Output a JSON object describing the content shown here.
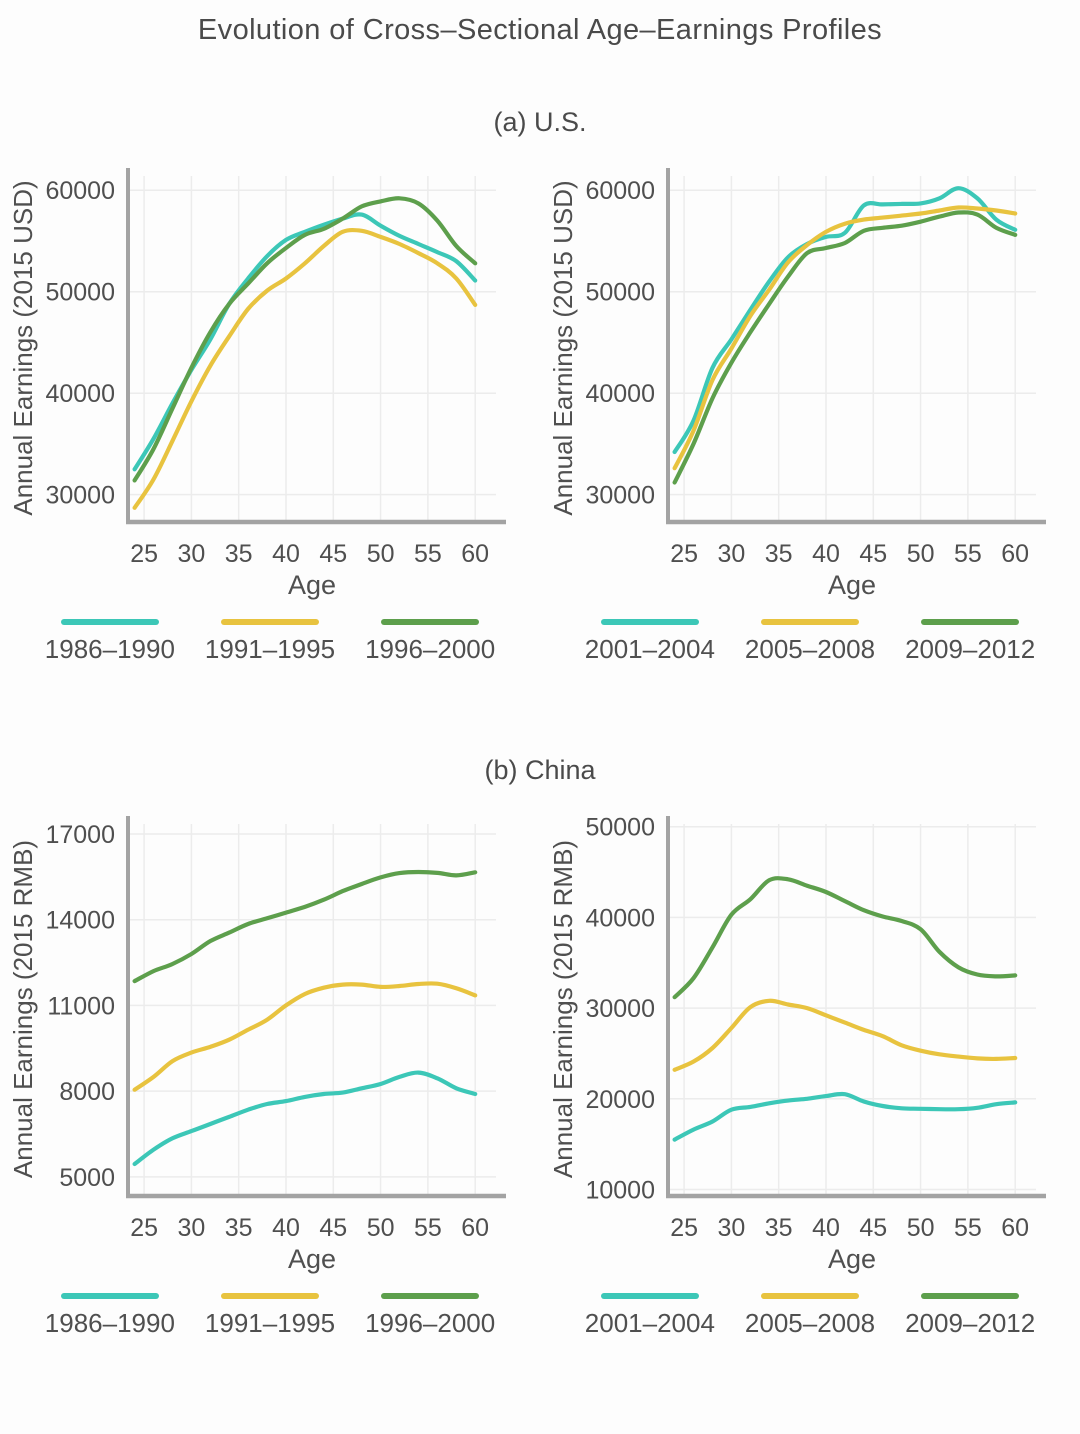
{
  "figure": {
    "title": "Evolution of Cross–Sectional Age–Earnings Profiles",
    "panels": {
      "a": "(a) U.S.",
      "b": "(b) China"
    }
  },
  "colors": {
    "teal": "#3CC7B7",
    "yellow": "#E8C33F",
    "green": "#5D9F4C",
    "axis": "#a3a3a3",
    "grid": "#ececec",
    "text": "#4f4f4f",
    "title": "#4a4a4a"
  },
  "chart_data": [
    {
      "id": "us-1986-2000",
      "type": "line",
      "panel": "(a) U.S.",
      "title": "",
      "xlabel": "Age",
      "ylabel": "Annual Earnings (2015 USD)",
      "grid": true,
      "legend_position": "bottom",
      "x": [
        24,
        26,
        28,
        30,
        32,
        34,
        36,
        38,
        40,
        42,
        44,
        46,
        48,
        50,
        52,
        54,
        56,
        58,
        60
      ],
      "xticks": [
        25,
        30,
        35,
        40,
        45,
        50,
        55,
        60
      ],
      "yticks": [
        30000,
        40000,
        50000,
        60000
      ],
      "xlim": [
        23.3,
        62.2
      ],
      "ylim": [
        27500,
        61400
      ],
      "series": [
        {
          "name": "1986–1990",
          "color": "#3CC7B7",
          "values": [
            32500,
            35500,
            39000,
            42300,
            45300,
            48800,
            51300,
            53500,
            55100,
            55900,
            56600,
            57200,
            57600,
            56500,
            55500,
            54700,
            53900,
            53000,
            51100
          ]
        },
        {
          "name": "1991–1995",
          "color": "#E8C33F",
          "values": [
            28700,
            31500,
            35300,
            39200,
            42700,
            45600,
            48300,
            50100,
            51300,
            52800,
            54500,
            55900,
            56000,
            55400,
            54700,
            53800,
            52800,
            51300,
            48700
          ]
        },
        {
          "name": "1996–2000",
          "color": "#5D9F4C",
          "values": [
            31400,
            34500,
            38500,
            42500,
            46000,
            48800,
            50800,
            52800,
            54300,
            55600,
            56200,
            57200,
            58400,
            58900,
            59200,
            58700,
            57000,
            54500,
            52800
          ]
        }
      ]
    },
    {
      "id": "us-2001-2012",
      "type": "line",
      "panel": "(a) U.S.",
      "title": "",
      "xlabel": "Age",
      "ylabel": "Annual Earnings (2015 USD)",
      "grid": true,
      "legend_position": "bottom",
      "x": [
        24,
        26,
        28,
        30,
        32,
        34,
        36,
        38,
        40,
        42,
        44,
        46,
        48,
        50,
        52,
        54,
        56,
        58,
        60
      ],
      "xticks": [
        25,
        30,
        35,
        40,
        45,
        50,
        55,
        60
      ],
      "yticks": [
        30000,
        40000,
        50000,
        60000
      ],
      "xlim": [
        23.3,
        62.2
      ],
      "ylim": [
        27500,
        61400
      ],
      "series": [
        {
          "name": "2001–2004",
          "color": "#3CC7B7",
          "values": [
            34200,
            37300,
            42500,
            45300,
            48200,
            51000,
            53400,
            54700,
            55400,
            55800,
            58500,
            58600,
            58650,
            58700,
            59200,
            60200,
            59200,
            57100,
            56100
          ]
        },
        {
          "name": "2005–2008",
          "color": "#E8C33F",
          "values": [
            32600,
            36300,
            41300,
            44400,
            47600,
            50200,
            52900,
            54600,
            55900,
            56700,
            57100,
            57300,
            57500,
            57700,
            58000,
            58300,
            58200,
            58000,
            57700
          ]
        },
        {
          "name": "2009–2012",
          "color": "#5D9F4C",
          "values": [
            31200,
            35000,
            39500,
            43000,
            46000,
            48800,
            51500,
            53800,
            54300,
            54800,
            56000,
            56300,
            56500,
            56900,
            57400,
            57800,
            57600,
            56300,
            55600
          ]
        }
      ]
    },
    {
      "id": "china-1986-2000",
      "type": "line",
      "panel": "(b) China",
      "title": "",
      "xlabel": "Age",
      "ylabel": "Annual Earnings (2015 RMB)",
      "grid": true,
      "legend_position": "bottom",
      "x": [
        24,
        26,
        28,
        30,
        32,
        34,
        36,
        38,
        40,
        42,
        44,
        46,
        48,
        50,
        52,
        54,
        56,
        58,
        60
      ],
      "xticks": [
        25,
        30,
        35,
        40,
        45,
        50,
        55,
        60
      ],
      "yticks": [
        5000,
        8000,
        11000,
        14000,
        17000
      ],
      "xlim": [
        23.3,
        62.2
      ],
      "ylim": [
        4400,
        17350
      ],
      "series": [
        {
          "name": "1986–1990",
          "color": "#3CC7B7",
          "values": [
            5450,
            5950,
            6350,
            6600,
            6850,
            7100,
            7350,
            7550,
            7650,
            7800,
            7900,
            7950,
            8100,
            8250,
            8500,
            8650,
            8450,
            8100,
            7900
          ]
        },
        {
          "name": "1991–1995",
          "color": "#E8C33F",
          "values": [
            8050,
            8500,
            9050,
            9350,
            9550,
            9800,
            10150,
            10500,
            11000,
            11400,
            11620,
            11730,
            11730,
            11650,
            11680,
            11750,
            11760,
            11600,
            11350
          ]
        },
        {
          "name": "1996–2000",
          "color": "#5D9F4C",
          "values": [
            11850,
            12200,
            12450,
            12800,
            13250,
            13550,
            13850,
            14050,
            14250,
            14450,
            14700,
            15000,
            15250,
            15480,
            15630,
            15670,
            15640,
            15550,
            15660
          ]
        }
      ]
    },
    {
      "id": "china-2001-2012",
      "type": "line",
      "panel": "(b) China",
      "title": "",
      "xlabel": "Age",
      "ylabel": "Annual Earnings (2015 RMB)",
      "grid": true,
      "legend_position": "bottom",
      "x": [
        24,
        26,
        28,
        30,
        32,
        34,
        36,
        38,
        40,
        42,
        44,
        46,
        48,
        50,
        52,
        54,
        56,
        58,
        60
      ],
      "xticks": [
        25,
        30,
        35,
        40,
        45,
        50,
        55,
        60
      ],
      "yticks": [
        10000,
        20000,
        30000,
        40000,
        50000
      ],
      "xlim": [
        23.3,
        62.2
      ],
      "ylim": [
        9500,
        50300
      ],
      "series": [
        {
          "name": "2001–2004",
          "color": "#3CC7B7",
          "values": [
            15500,
            16600,
            17500,
            18800,
            19100,
            19500,
            19800,
            20000,
            20300,
            20500,
            19700,
            19200,
            18950,
            18900,
            18850,
            18850,
            19000,
            19400,
            19600
          ]
        },
        {
          "name": "2005–2008",
          "color": "#E8C33F",
          "values": [
            23200,
            24100,
            25600,
            27800,
            30100,
            30800,
            30400,
            30000,
            29200,
            28400,
            27600,
            26900,
            25900,
            25300,
            24900,
            24650,
            24450,
            24400,
            24500
          ]
        },
        {
          "name": "2009–2012",
          "color": "#5D9F4C",
          "values": [
            31200,
            33300,
            36700,
            40300,
            42000,
            44100,
            44200,
            43500,
            42800,
            41800,
            40800,
            40100,
            39600,
            38700,
            36200,
            34500,
            33700,
            33500,
            33600
          ]
        }
      ]
    }
  ]
}
